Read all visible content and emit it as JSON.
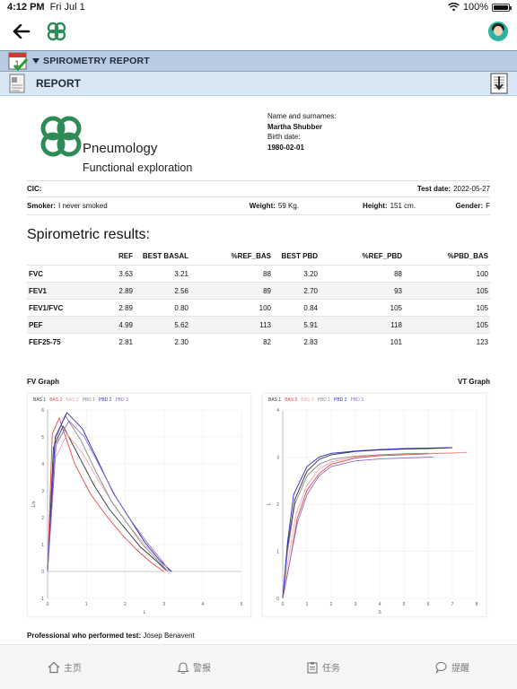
{
  "status": {
    "time": "4:12 PM",
    "date": "Fri Jul 1",
    "battery": "100%",
    "battery_level": 1.0
  },
  "nav": {
    "back_icon": "arrow-left-icon",
    "logo_icon": "clover-logo-icon",
    "avatar_icon": "user-avatar-icon"
  },
  "section": {
    "title": "SPIROMETRY REPORT",
    "report_title": "REPORT"
  },
  "header": {
    "logo_title": "Pneumology",
    "logo_subtitle": "Functional exploration",
    "name_label": "Name and surnames:",
    "name_value": "Martha Shubber",
    "birth_label": "Birth date:",
    "birth_value": "1980-02-01"
  },
  "info": {
    "cic_label": "CIC:",
    "test_date_label": "Test date:",
    "test_date_value": "2022-05-27",
    "smoker_label": "Smoker:",
    "smoker_value": "I never smoked",
    "weight_label": "Weight:",
    "weight_value": "59 Kg.",
    "height_label": "Height:",
    "height_value": "151 cm.",
    "gender_label": "Gender:",
    "gender_value": "F"
  },
  "results": {
    "title": "Spirometric results:",
    "headers": [
      "",
      "REF",
      "BEST BASAL",
      "%REF_BAS",
      "BEST PBD",
      "%REF_PBD",
      "%PBD_BAS"
    ],
    "rows": [
      [
        "FVC",
        "3.63",
        "3.21",
        "88",
        "3.20",
        "88",
        "100"
      ],
      [
        "FEV1",
        "2.89",
        "2.56",
        "89",
        "2.70",
        "93",
        "105"
      ],
      [
        "FEV1/FVC",
        "2.89",
        "0.80",
        "100",
        "0.84",
        "105",
        "105"
      ],
      [
        "PEF",
        "4.99",
        "5.62",
        "113",
        "5.91",
        "118",
        "105"
      ],
      [
        "FEF25-75",
        "2.81",
        "2.30",
        "82",
        "2.83",
        "101",
        "123"
      ]
    ]
  },
  "graphs": {
    "fv_label": "FV Graph",
    "vt_label": "VT Graph",
    "legend": [
      "BAS 1",
      "BAS 2",
      "BAS 3",
      "PBD 1",
      "PBD 2",
      "PBD 3"
    ],
    "colors": [
      "#333333",
      "#e2474c",
      "#f4a6a6",
      "#888888",
      "#2b2bc7",
      "#8d69c9"
    ]
  },
  "chart_data": [
    {
      "type": "line",
      "title": "FV Graph",
      "xlabel": "L",
      "ylabel": "L/s",
      "xlim": [
        0,
        5
      ],
      "ylim": [
        -1,
        6
      ],
      "xticks": [
        0,
        1,
        2,
        3,
        4,
        5
      ],
      "yticks": [
        -1,
        0,
        1,
        2,
        3,
        4,
        5,
        6
      ],
      "series": [
        {
          "name": "BAS 1",
          "x": [
            0,
            0.15,
            0.4,
            0.8,
            1.2,
            1.6,
            2.0,
            2.4,
            2.8,
            3.05
          ],
          "y": [
            0,
            4.6,
            5.4,
            4.3,
            3.2,
            2.3,
            1.6,
            0.9,
            0.4,
            0.05
          ]
        },
        {
          "name": "BAS 2",
          "x": [
            0,
            0.12,
            0.3,
            0.7,
            1.1,
            1.5,
            1.9,
            2.3,
            2.7,
            3.0
          ],
          "y": [
            0,
            5.1,
            5.7,
            4.0,
            2.9,
            2.1,
            1.4,
            0.8,
            0.3,
            0.0
          ]
        },
        {
          "name": "BAS 3",
          "x": [
            0,
            0.2,
            0.5,
            0.9,
            1.3,
            1.7,
            2.1,
            2.5,
            2.9,
            3.1
          ],
          "y": [
            0,
            4.2,
            5.1,
            4.4,
            3.4,
            2.5,
            1.7,
            1.0,
            0.4,
            0.0
          ]
        },
        {
          "name": "PBD 1",
          "x": [
            0,
            0.18,
            0.45,
            0.85,
            1.25,
            1.65,
            2.05,
            2.45,
            2.85,
            3.1
          ],
          "y": [
            0,
            4.8,
            5.8,
            4.9,
            3.7,
            2.6,
            1.8,
            1.0,
            0.4,
            0.0
          ]
        },
        {
          "name": "PBD 2",
          "x": [
            0,
            0.2,
            0.5,
            0.9,
            1.3,
            1.7,
            2.1,
            2.5,
            2.9,
            3.2
          ],
          "y": [
            0,
            5.0,
            5.9,
            5.3,
            4.1,
            2.9,
            2.0,
            1.1,
            0.4,
            0.0
          ]
        },
        {
          "name": "PBD 3",
          "x": [
            0,
            0.22,
            0.55,
            0.95,
            1.35,
            1.75,
            2.15,
            2.55,
            2.95,
            3.15
          ],
          "y": [
            0,
            4.7,
            5.6,
            5.0,
            3.9,
            2.8,
            1.9,
            1.1,
            0.4,
            0.0
          ]
        }
      ]
    },
    {
      "type": "line",
      "title": "VT Graph",
      "xlabel": "S",
      "ylabel": "L",
      "xlim": [
        0,
        8
      ],
      "ylim": [
        0,
        4
      ],
      "xticks": [
        0,
        1,
        2,
        3,
        4,
        5,
        6,
        7,
        8
      ],
      "yticks": [
        0,
        1,
        2,
        3,
        4
      ],
      "series": [
        {
          "name": "BAS 1",
          "x": [
            0,
            0.2,
            0.5,
            1,
            1.5,
            2,
            3,
            4,
            5,
            6,
            7
          ],
          "y": [
            0,
            1.1,
            2.1,
            2.7,
            2.95,
            3.05,
            3.12,
            3.15,
            3.17,
            3.18,
            3.2
          ]
        },
        {
          "name": "BAS 2",
          "x": [
            0,
            0.3,
            0.6,
            1,
            1.5,
            2,
            3,
            4,
            5,
            6,
            7.6
          ],
          "y": [
            0,
            0.8,
            1.7,
            2.3,
            2.65,
            2.85,
            2.98,
            3.03,
            3.05,
            3.07,
            3.1
          ]
        },
        {
          "name": "BAS 3",
          "x": [
            0,
            0.25,
            0.55,
            1,
            1.5,
            2,
            3,
            4,
            5,
            6,
            7.6
          ],
          "y": [
            0,
            0.9,
            1.8,
            2.4,
            2.75,
            2.9,
            3.0,
            3.05,
            3.07,
            3.08,
            3.1
          ]
        },
        {
          "name": "PBD 1",
          "x": [
            0,
            0.2,
            0.5,
            1,
            1.5,
            2,
            3,
            4,
            5,
            6
          ],
          "y": [
            0,
            1.0,
            2.0,
            2.6,
            2.85,
            2.95,
            3.02,
            3.05,
            3.07,
            3.08
          ]
        },
        {
          "name": "PBD 2",
          "x": [
            0,
            0.2,
            0.45,
            1,
            1.5,
            2,
            3,
            4,
            5,
            6,
            6.9
          ],
          "y": [
            0,
            1.2,
            2.2,
            2.8,
            3.0,
            3.08,
            3.13,
            3.16,
            3.18,
            3.19,
            3.2
          ]
        },
        {
          "name": "PBD 3",
          "x": [
            0,
            0.3,
            0.6,
            1,
            1.5,
            2,
            3,
            4,
            5,
            6.2
          ],
          "y": [
            0,
            0.8,
            1.6,
            2.2,
            2.6,
            2.8,
            2.92,
            2.96,
            2.98,
            3.0
          ]
        }
      ]
    }
  ],
  "footer": {
    "prof_label": "Professional who performed test:",
    "prof_value": "Josep Benavent"
  },
  "tabs": [
    {
      "label": "主页",
      "icon": "home-icon"
    },
    {
      "label": "警报",
      "icon": "bell-icon"
    },
    {
      "label": "任务",
      "icon": "clipboard-icon"
    },
    {
      "label": "提醒",
      "icon": "chat-bubble-icon"
    }
  ]
}
